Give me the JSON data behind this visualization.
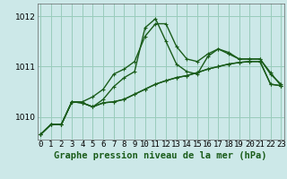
{
  "background_color": "#cce8e8",
  "grid_color": "#99ccbb",
  "line_color": "#1a5c1a",
  "title": "Graphe pression niveau de la mer (hPa)",
  "title_fontsize": 7.5,
  "tick_fontsize": 6.5,
  "x_ticks": [
    0,
    1,
    2,
    3,
    4,
    5,
    6,
    7,
    8,
    9,
    10,
    11,
    12,
    13,
    14,
    15,
    16,
    17,
    18,
    19,
    20,
    21,
    22,
    23
  ],
  "y_ticks": [
    1010,
    1011,
    1012
  ],
  "ylim": [
    1009.55,
    1012.25
  ],
  "xlim": [
    -0.3,
    23.3
  ],
  "series": [
    {
      "y": [
        1009.65,
        1009.85,
        1009.85,
        1010.3,
        1010.3,
        1010.4,
        1010.55,
        1010.85,
        1010.95,
        1011.1,
        1011.6,
        1011.85,
        1011.85,
        1011.4,
        1011.15,
        1011.1,
        1011.25,
        1011.35,
        1011.25,
        1011.15,
        1011.15,
        1011.15,
        1010.85,
        1010.65
      ],
      "linestyle": "-",
      "linewidth": 1.0
    },
    {
      "y": [
        1009.65,
        1009.85,
        1009.85,
        1010.3,
        1010.28,
        1010.2,
        1010.28,
        1010.3,
        1010.35,
        1010.45,
        1010.55,
        1010.65,
        1010.72,
        1010.78,
        1010.82,
        1010.88,
        1010.95,
        1011.0,
        1011.05,
        1011.08,
        1011.1,
        1011.1,
        1010.65,
        1010.62
      ],
      "linestyle": "-",
      "linewidth": 1.0
    },
    {
      "y": [
        1009.65,
        1009.85,
        1009.85,
        1010.3,
        1010.28,
        1010.2,
        1010.28,
        1010.3,
        1010.35,
        1010.45,
        1010.55,
        1010.65,
        1010.72,
        1010.78,
        1010.82,
        1010.88,
        1010.95,
        1011.0,
        1011.05,
        1011.08,
        1011.1,
        1011.1,
        1010.65,
        1010.62
      ],
      "linestyle": "-",
      "linewidth": 1.0
    },
    {
      "y": [
        1009.65,
        1009.85,
        1009.85,
        1010.3,
        1010.28,
        1010.2,
        1010.35,
        1010.6,
        1010.78,
        1010.9,
        1011.77,
        1011.95,
        1011.5,
        1011.05,
        1010.9,
        1010.85,
        1011.2,
        1011.35,
        1011.28,
        1011.15,
        1011.15,
        1011.15,
        1010.88,
        1010.62
      ],
      "linestyle": "-",
      "linewidth": 1.0
    }
  ]
}
